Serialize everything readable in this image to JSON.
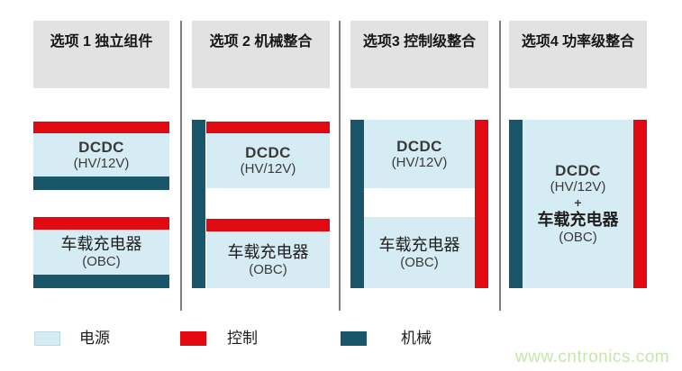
{
  "diagram_title": null,
  "columns": [
    {
      "title": "选项 1  独立组件",
      "blocks": [
        {
          "lines": [
            "DCDC",
            "(HV/12V)"
          ]
        },
        {
          "lines": [
            "车载充电器",
            "(OBC)"
          ]
        }
      ]
    },
    {
      "title": "选项 2  机械整合",
      "blocks": [
        {
          "lines": [
            "DCDC",
            "(HV/12V)"
          ]
        },
        {
          "lines": [
            "车载充电器",
            "(OBC)"
          ]
        }
      ]
    },
    {
      "title": "选项3  控制级整合",
      "blocks": [
        {
          "lines": [
            "DCDC",
            "(HV/12V)"
          ]
        },
        {
          "lines": [
            "车载充电器",
            "(OBC)"
          ]
        }
      ]
    },
    {
      "title": "选项4  功率级整合",
      "blocks": [
        {
          "lines": [
            "DCDC",
            "(HV/12V)",
            "+",
            "车载充电器",
            "(OBC)"
          ]
        }
      ]
    }
  ],
  "legend": {
    "items": [
      {
        "label": "电源",
        "color": "#d6ecf4"
      },
      {
        "label": "控制",
        "color": "#e00a10"
      },
      {
        "label": "机械",
        "color": "#1a566a"
      }
    ]
  },
  "watermark": "www.cntronics.com",
  "colors": {
    "power": "#d6ecf4",
    "control": "#e00a10",
    "mechanical": "#1a566a",
    "header_bg": "#e2e2e2",
    "divider": "#7e7e7e",
    "watermark_green": "#c5e7ad"
  }
}
